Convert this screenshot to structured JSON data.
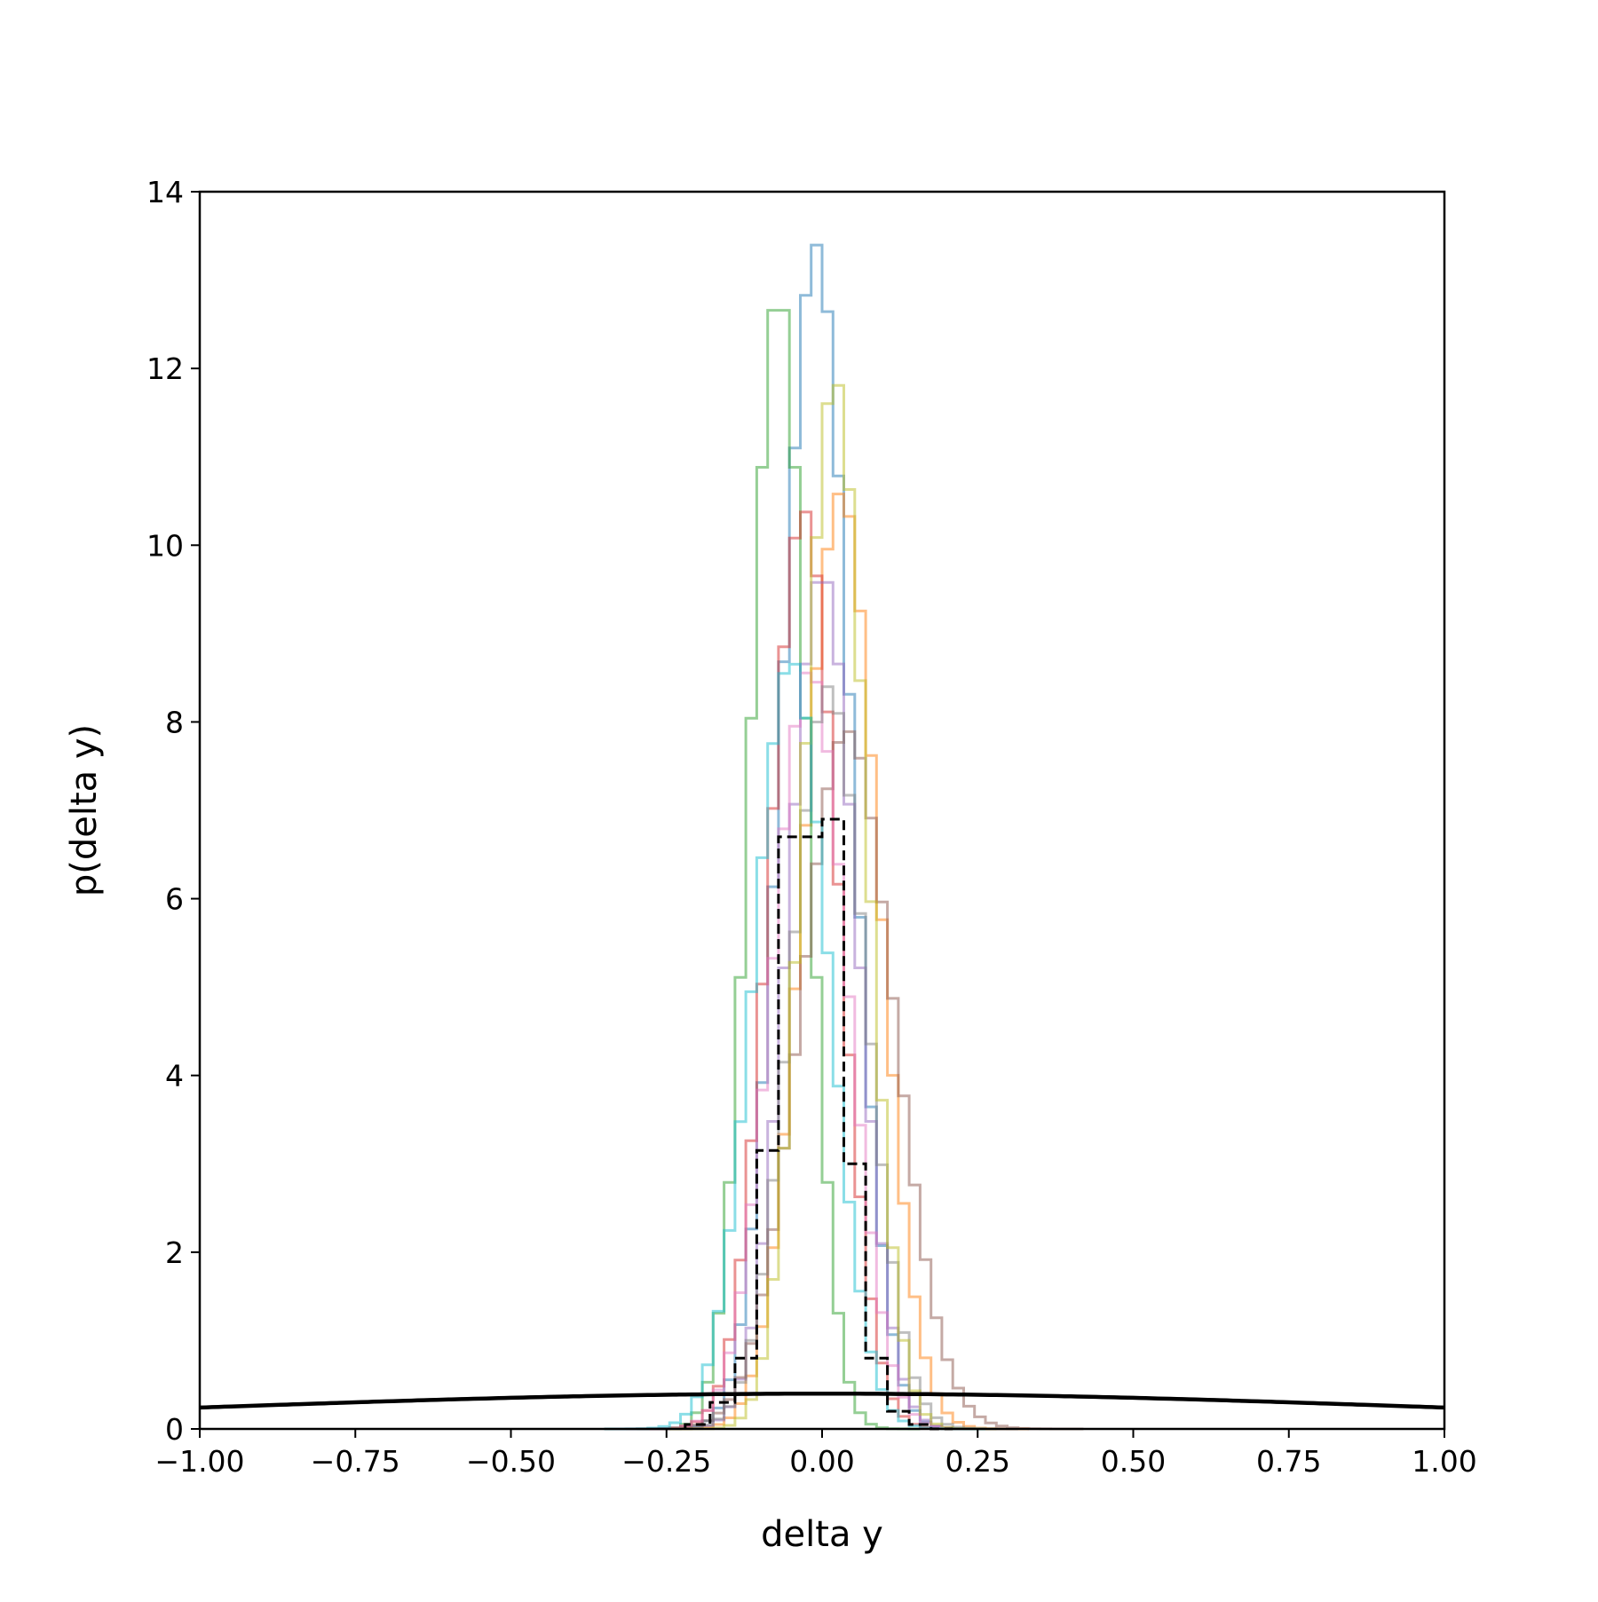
{
  "chart_data": {
    "type": "histogram",
    "xlabel": "delta y",
    "ylabel": "p(delta y)",
    "xlim": [
      -1.0,
      1.0
    ],
    "ylim": [
      0,
      14
    ],
    "xticks": [
      -1.0,
      -0.75,
      -0.5,
      -0.25,
      0.0,
      0.25,
      0.5,
      0.75,
      1.0
    ],
    "xtick_labels": [
      "−1.00",
      "−0.75",
      "−0.50",
      "−0.25",
      "0.00",
      "0.25",
      "0.50",
      "0.75",
      "1.00"
    ],
    "yticks": [
      0,
      2,
      4,
      6,
      8,
      10,
      12,
      14
    ],
    "ytick_labels": [
      "0",
      "2",
      "4",
      "6",
      "8",
      "10",
      "12",
      "14"
    ],
    "grid": false,
    "legend": "none",
    "series": [
      {
        "color": "#1f77b4",
        "style": "step",
        "peak_x": -0.01,
        "peak_y": 13.4,
        "sigma": 0.055
      },
      {
        "color": "#ff7f0e",
        "style": "step",
        "peak_x": 0.03,
        "peak_y": 10.6,
        "sigma": 0.06
      },
      {
        "color": "#2ca02c",
        "style": "step",
        "peak_x": -0.07,
        "peak_y": 12.9,
        "sigma": 0.045
      },
      {
        "color": "#d62728",
        "style": "step",
        "peak_x": -0.03,
        "peak_y": 10.4,
        "sigma": 0.055
      },
      {
        "color": "#9467bd",
        "style": "step",
        "peak_x": 0.0,
        "peak_y": 9.7,
        "sigma": 0.055
      },
      {
        "color": "#8c564b",
        "style": "step",
        "peak_x": 0.04,
        "peak_y": 7.9,
        "sigma": 0.075
      },
      {
        "color": "#e377c2",
        "style": "step",
        "peak_x": -0.02,
        "peak_y": 8.6,
        "sigma": 0.06
      },
      {
        "color": "#7f7f7f",
        "style": "step",
        "peak_x": 0.01,
        "peak_y": 8.4,
        "sigma": 0.06
      },
      {
        "color": "#bcbd22",
        "style": "step",
        "peak_x": 0.02,
        "peak_y": 11.9,
        "sigma": 0.05
      },
      {
        "color": "#17becf",
        "style": "step",
        "peak_x": -0.05,
        "peak_y": 8.7,
        "sigma": 0.06
      }
    ],
    "aggregate_dashed": {
      "color": "#000000",
      "style": "dashed-step",
      "bin_edges": [
        -0.22,
        -0.18,
        -0.14,
        -0.105,
        -0.07,
        -0.035,
        0.0,
        0.035,
        0.07,
        0.105,
        0.14,
        0.175,
        0.21
      ],
      "values": [
        0.05,
        0.3,
        0.8,
        3.15,
        6.7,
        6.7,
        6.9,
        3.0,
        0.8,
        0.2,
        0.05,
        0.0
      ]
    },
    "reference_curve": {
      "color": "#000000",
      "style": "solid",
      "type": "gaussian",
      "mean": 0.0,
      "sigma": 1.0
    }
  }
}
